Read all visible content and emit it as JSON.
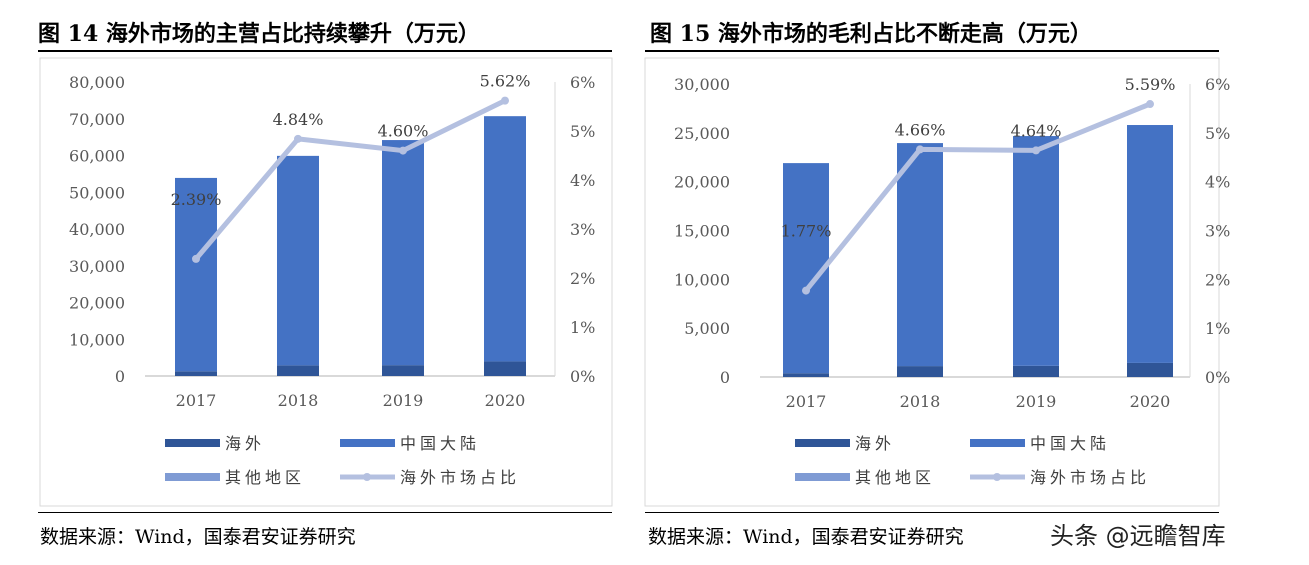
{
  "chart_data": [
    {
      "type": "bar",
      "title": "图 14 海外市场的主营占比持续攀升（万元）",
      "categories": [
        "2017",
        "2018",
        "2019",
        "2020"
      ],
      "series": [
        {
          "name": "海外",
          "values": [
            1290,
            2900,
            2950,
            3970
          ],
          "color": "#2F5597"
        },
        {
          "name": "中国大陆",
          "values": [
            52610,
            57000,
            61250,
            66730
          ],
          "color": "#4472C4"
        },
        {
          "name": "其他地区",
          "values": [
            0,
            0,
            0,
            0
          ],
          "color": "#7F9BD4"
        },
        {
          "name": "海外市场占比",
          "type": "line",
          "axis": "right",
          "values": [
            2.39,
            4.84,
            4.6,
            5.62
          ],
          "labels": [
            "2.39%",
            "4.84%",
            "4.60%",
            "5.62%"
          ],
          "color": "#B4C0E0"
        }
      ],
      "ylim": [
        0,
        80000
      ],
      "yticks": [
        "0",
        "10,000",
        "20,000",
        "30,000",
        "40,000",
        "50,000",
        "60,000",
        "70,000",
        "80,000"
      ],
      "y2lim": [
        0,
        6
      ],
      "y2ticks": [
        "0%",
        "1%",
        "2%",
        "3%",
        "4%",
        "5%",
        "6%"
      ],
      "stacked": true,
      "legend": "bottom",
      "source": "数据来源：Wind，国泰君安证券研究"
    },
    {
      "type": "bar",
      "title": "图 15 海外市场的毛利占比不断走高（万元）",
      "categories": [
        "2017",
        "2018",
        "2019",
        "2020"
      ],
      "series": [
        {
          "name": "海外",
          "values": [
            388,
            1116,
            1145,
            1442
          ],
          "color": "#2F5597"
        },
        {
          "name": "中国大陆",
          "values": [
            21512,
            22834,
            23525,
            24358
          ],
          "color": "#4472C4"
        },
        {
          "name": "其他地区",
          "values": [
            0,
            0,
            0,
            0
          ],
          "color": "#7F9BD4"
        },
        {
          "name": "海外市场占比",
          "type": "line",
          "axis": "right",
          "values": [
            1.77,
            4.66,
            4.64,
            5.59
          ],
          "labels": [
            "1.77%",
            "4.66%",
            "4.64%",
            "5.59%"
          ],
          "color": "#B4C0E0"
        }
      ],
      "ylim": [
        0,
        30000
      ],
      "yticks": [
        "0",
        "5,000",
        "10,000",
        "15,000",
        "20,000",
        "25,000",
        "30,000"
      ],
      "y2lim": [
        0,
        6
      ],
      "y2ticks": [
        "0%",
        "1%",
        "2%",
        "3%",
        "4%",
        "5%",
        "6%"
      ],
      "stacked": true,
      "legend": "bottom",
      "source": "数据来源：Wind，国泰君安证券研究"
    }
  ],
  "watermark": "头条 @远瞻智库"
}
